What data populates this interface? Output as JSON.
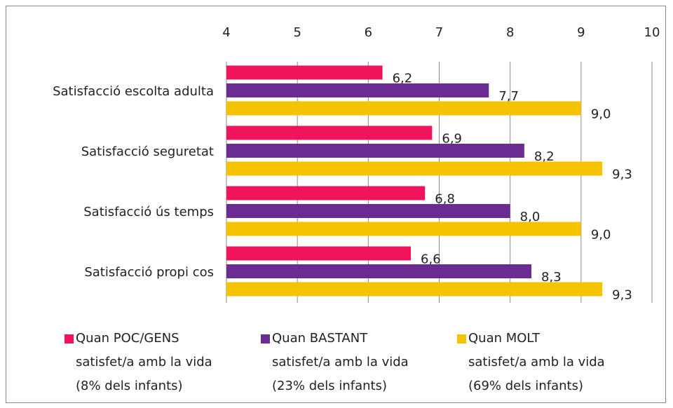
{
  "chart_data": {
    "type": "hbar",
    "categories": [
      "Satisfacció escolta adulta",
      "Satisfacció seguretat",
      "Satisfacció ús temps",
      "Satisfacció propi cos"
    ],
    "series": [
      {
        "name": "Quan POC/GENS\nsatisfet/a amb la vida\n(8% dels infants)",
        "color": "#f0145a",
        "values": [
          6.2,
          6.9,
          6.8,
          6.6
        ],
        "value_labels": [
          "6,2",
          "6,9",
          "6,8",
          "6,6"
        ]
      },
      {
        "name": "Quan BASTANT\nsatisfet/a amb la vida\n(23% dels infants)",
        "color": "#6a2c91",
        "values": [
          7.7,
          8.2,
          8.0,
          8.3
        ],
        "value_labels": [
          "7,7",
          "8,2",
          "8,0",
          "8,3"
        ]
      },
      {
        "name": "Quan MOLT\nsatisfet/a amb la vida\n(69% dels infants)",
        "color": "#f5c400",
        "values": [
          9.0,
          9.3,
          9.0,
          9.3
        ],
        "value_labels": [
          "9,0",
          "9,3",
          "9,0",
          "9,3"
        ]
      }
    ],
    "xlim": [
      4,
      10
    ],
    "xticks": [
      4,
      5,
      6,
      7,
      8,
      9,
      10
    ],
    "grid": true,
    "legend": "bottom"
  }
}
